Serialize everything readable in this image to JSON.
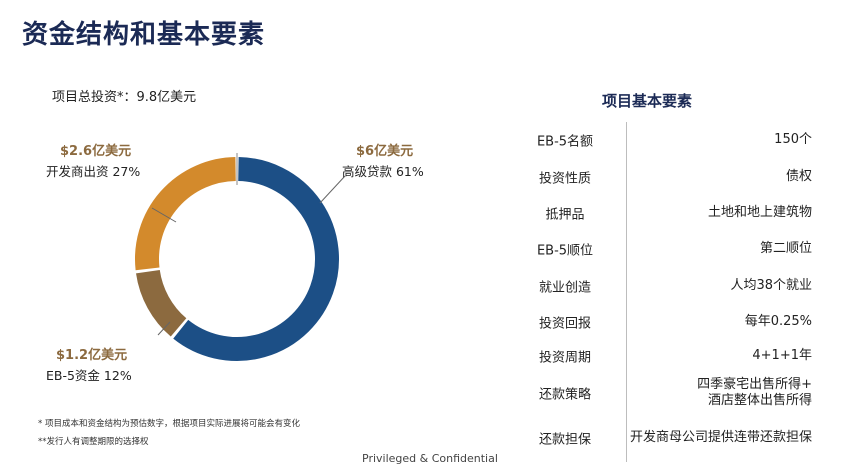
{
  "title": "资金结构和基本要素",
  "total_investment": "项目总投资*：9.8亿美元",
  "chart_data": {
    "type": "pie",
    "donut": true,
    "slices": [
      {
        "label": "高级贷款",
        "amount": "$6亿美元",
        "percent_label": "61%",
        "value": 61,
        "color": "#1c4f86"
      },
      {
        "label": "EB-5资金",
        "amount": "$1.2亿美元",
        "percent_label": "12%",
        "value": 12,
        "color": "#8c6a3f"
      },
      {
        "label": "开发商出资",
        "amount": "$2.6亿美元",
        "percent_label": "27%",
        "value": 27,
        "color": "#d38a2c"
      }
    ]
  },
  "callouts": {
    "senior": {
      "amount": "$6亿美元",
      "text": "高级贷款 61%"
    },
    "dev": {
      "amount": "$2.6亿美元",
      "text": "开发商出资 27%"
    },
    "eb5": {
      "amount": "$1.2亿美元",
      "text": "EB-5资金 12%"
    }
  },
  "notes": [
    "* 项目成本和资金结构为预估数字，根据项目实际进展将可能会有变化",
    "**发行人有调整期限的选择权"
  ],
  "footer": "Privileged & Confidential",
  "table": {
    "title": "项目基本要素",
    "rows": [
      {
        "key": "EB-5名额",
        "value": "150个"
      },
      {
        "key": "投资性质",
        "value": "债权"
      },
      {
        "key": "抵押品",
        "value": "土地和地上建筑物"
      },
      {
        "key": "EB-5顺位",
        "value": "第二顺位"
      },
      {
        "key": "就业创造",
        "value": "人均38个就业"
      },
      {
        "key": "投资回报",
        "value": "每年0.25%"
      },
      {
        "key": "投资周期",
        "value": "4+1+1年"
      },
      {
        "key": "还款策略",
        "value": "四季豪宅出售所得+\n酒店整体出售所得"
      },
      {
        "key": "还款担保",
        "value": "开发商母公司提供连带还款担保"
      }
    ]
  }
}
